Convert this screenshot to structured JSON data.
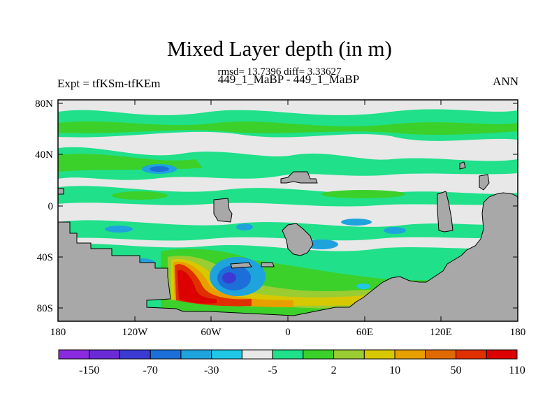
{
  "title": "Mixed Layer depth (in m)",
  "subtitle": "rmsd= 13.7396 diff= 3.33627",
  "left_label": "Expt = tfKSm-tfKEm",
  "center_label": "449_1_MaBP - 449_1_MaBP",
  "right_label": "ANN",
  "x_ticks": [
    "180",
    "120W",
    "60W",
    "0",
    "60E",
    "120E",
    "180"
  ],
  "y_ticks": [
    "80N",
    "40N",
    "0",
    "40S",
    "80S"
  ],
  "colorbar": {
    "colors": [
      "#8a2be2",
      "#6a2bd6",
      "#3b3bd4",
      "#1c6fd8",
      "#1fa3dc",
      "#1ec8e6",
      "#e8e8e8",
      "#20e08a",
      "#3cd02a",
      "#9acd32",
      "#d8c800",
      "#e8a000",
      "#e06a00",
      "#e03000",
      "#dd0000"
    ],
    "labels": [
      "-150",
      "-70",
      "-30",
      "-5",
      "2",
      "10",
      "50",
      "110"
    ]
  },
  "colors": {
    "land": "#a8a8a8",
    "neutral": "#e8e8e8",
    "positive_light": "#20e08a",
    "positive": "#3cd02a",
    "negative": "#1fa3dc",
    "negative_strong": "#1c6fd8",
    "high": "#dd0000"
  }
}
